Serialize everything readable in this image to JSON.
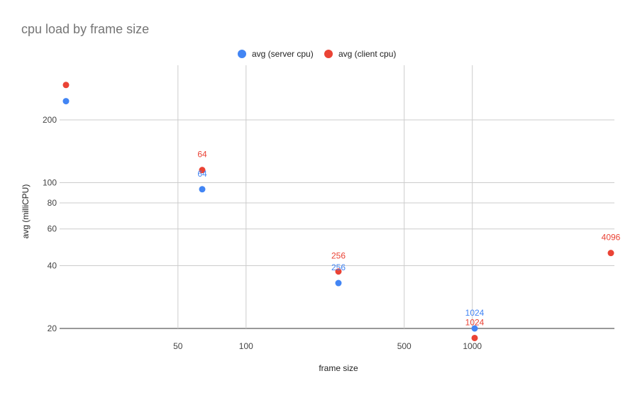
{
  "chart_data": {
    "type": "scatter",
    "title": "cpu load by frame size",
    "xlabel": "frame size",
    "ylabel": "avg (milliCPU)",
    "x_scale": "log",
    "y_scale": "log",
    "xlim": [
      16,
      4096
    ],
    "ylim": [
      18,
      300
    ],
    "x_ticks": [
      50,
      100,
      500,
      1000
    ],
    "y_ticks": [
      20,
      40,
      60,
      80,
      100,
      200
    ],
    "grid": true,
    "legend_position": "top-center",
    "series": [
      {
        "name": "avg (server cpu)",
        "color": "#4285f4",
        "points": [
          {
            "x": 16,
            "y": 246,
            "label": ""
          },
          {
            "x": 64,
            "y": 93,
            "label": "64"
          },
          {
            "x": 256,
            "y": 33,
            "label": "256"
          },
          {
            "x": 1024,
            "y": 20,
            "label": "1024"
          }
        ]
      },
      {
        "name": "avg (client cpu)",
        "color": "#ea4335",
        "points": [
          {
            "x": 16,
            "y": 294,
            "label": ""
          },
          {
            "x": 64,
            "y": 115,
            "label": "64"
          },
          {
            "x": 256,
            "y": 37.5,
            "label": "256"
          },
          {
            "x": 1024,
            "y": 18,
            "label": "1024"
          },
          {
            "x": 4096,
            "y": 46,
            "label": "4096"
          }
        ]
      }
    ]
  }
}
